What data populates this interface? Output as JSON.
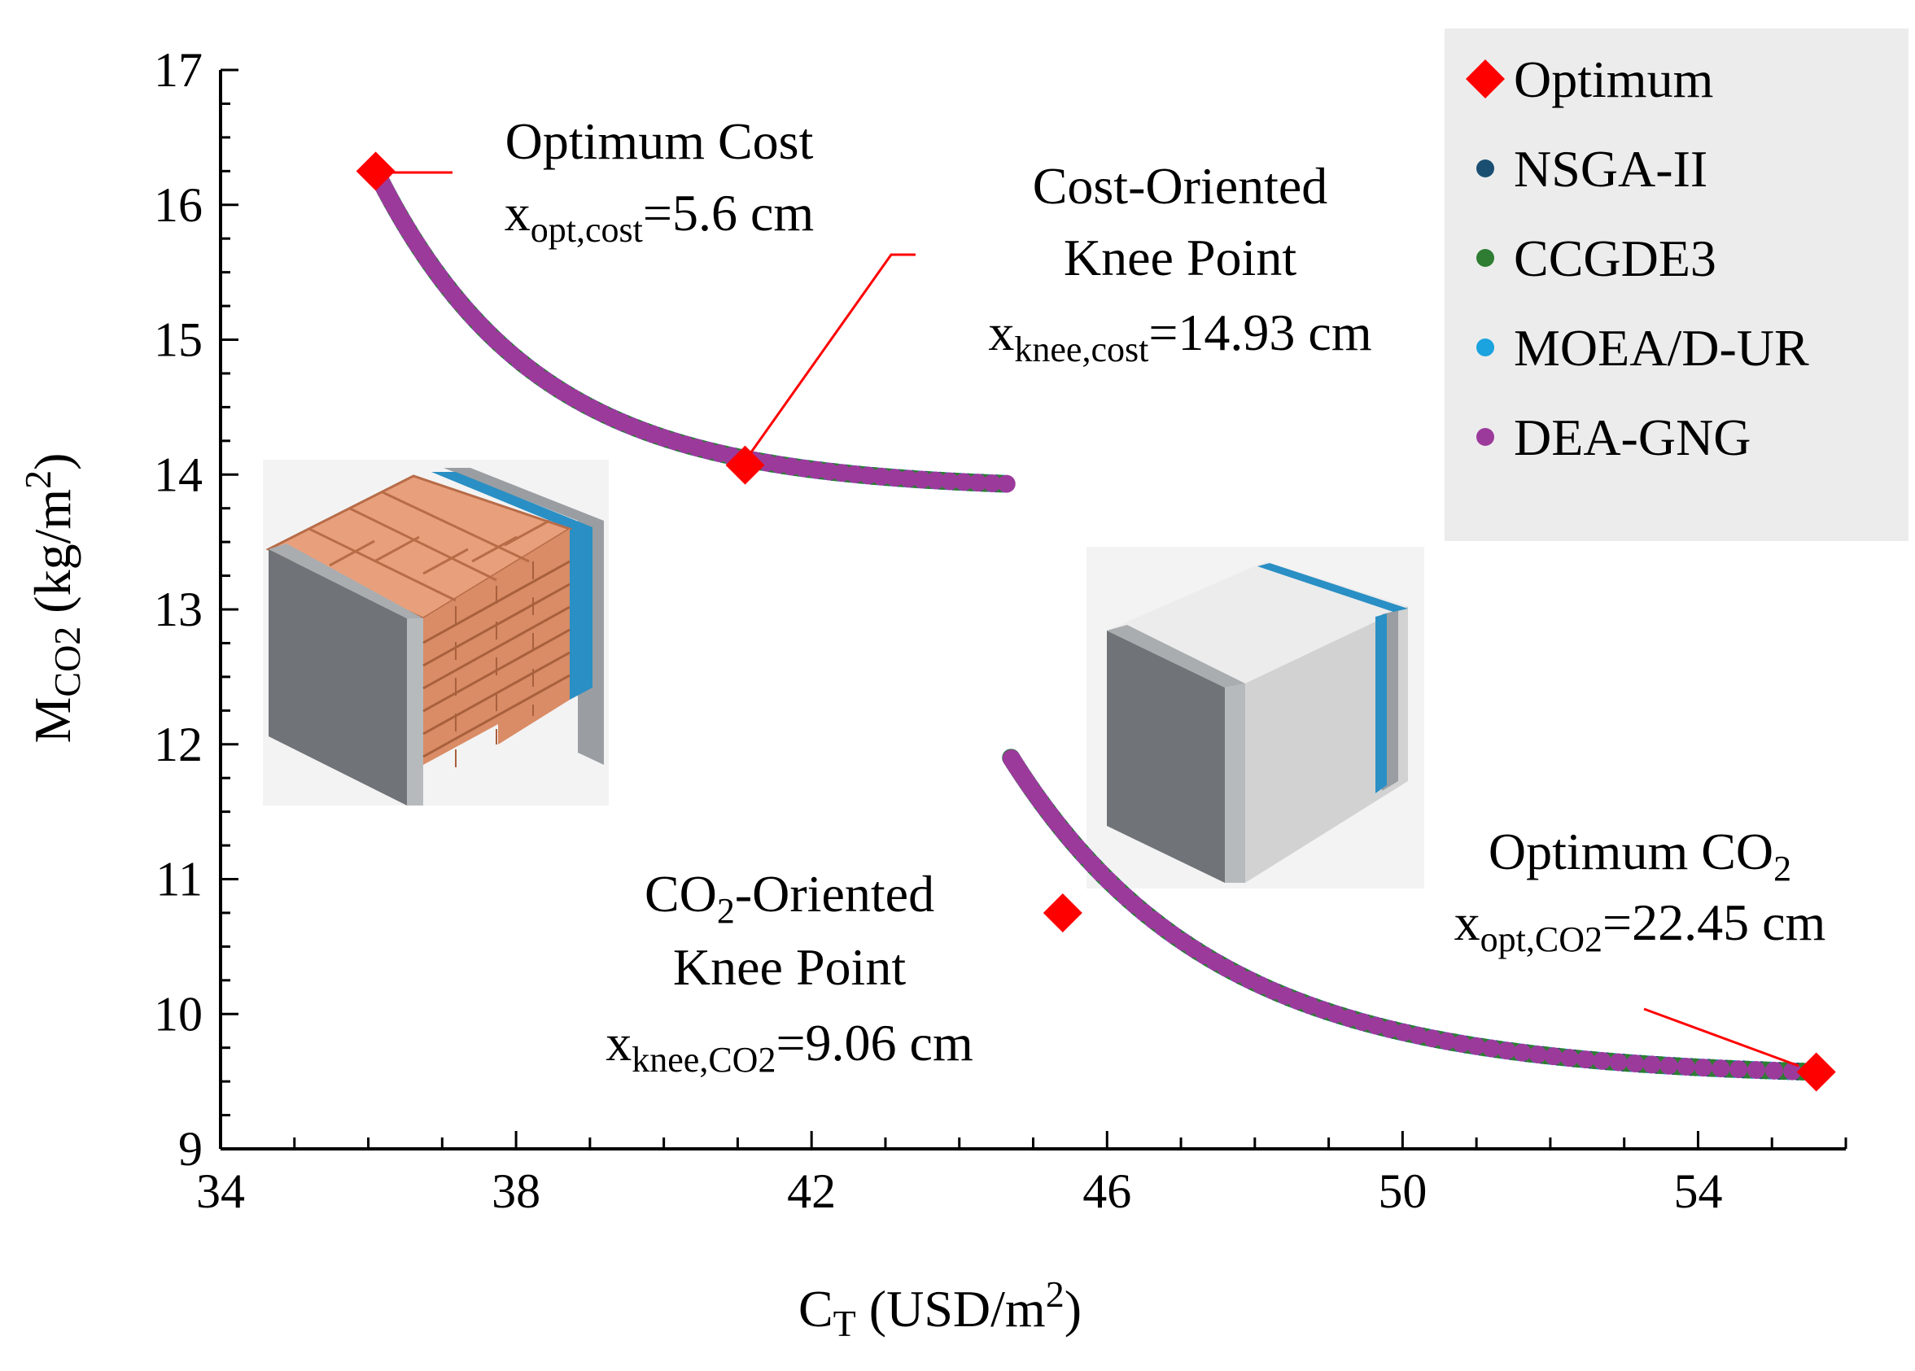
{
  "chart_data": {
    "type": "scatter",
    "xaxis": {
      "label_main": "C",
      "label_sub": "T",
      "label_rest": " (USD/m",
      "label_sup": "2",
      "label_close": ")",
      "range": [
        34,
        56
      ],
      "ticks": [
        34,
        38,
        42,
        46,
        50,
        54
      ],
      "tick_labels": [
        "34",
        "38",
        "42",
        "46",
        "50",
        "54"
      ]
    },
    "yaxis": {
      "label_main": "M",
      "label_sub": "CO2",
      "label_rest": " (kg/m",
      "label_sup": "2",
      "label_close": ")",
      "range": [
        9,
        17
      ],
      "ticks": [
        9,
        10,
        11,
        12,
        13,
        14,
        15,
        16,
        17
      ],
      "tick_labels": [
        "9",
        "10",
        "11",
        "12",
        "13",
        "14",
        "15",
        "16",
        "17"
      ]
    },
    "branches": [
      {
        "name": "brick-wall",
        "x_start": 36.1,
        "x_end": 44.7,
        "y_start": 16.25,
        "y_end": 13.93
      },
      {
        "name": "light-wall",
        "x_start": 44.7,
        "x_end": 55.6,
        "y_start": 11.9,
        "y_end": 9.57
      }
    ],
    "series": [
      {
        "name": "NSGA-II",
        "color": "#1b4f72",
        "marker": "circle"
      },
      {
        "name": "CCGDE3",
        "color": "#2e7d32",
        "marker": "circle"
      },
      {
        "name": "MOEA/D-UR",
        "color": "#1aa3df",
        "marker": "circle"
      },
      {
        "name": "DEA-GNG",
        "color": "#9c3a9c",
        "marker": "circle"
      }
    ],
    "optimum": {
      "name": "Optimum",
      "color": "#ff0000",
      "marker": "diamond",
      "points": [
        {
          "x": 36.1,
          "y": 16.25
        },
        {
          "x": 41.1,
          "y": 14.07
        },
        {
          "x": 45.4,
          "y": 10.75
        },
        {
          "x": 55.6,
          "y": 9.57
        }
      ]
    },
    "legend_position": "top-right",
    "annotations": {
      "opt_cost": {
        "title": "Optimum Cost",
        "var": "x",
        "sub": "opt,cost",
        "value": "=5.6 cm"
      },
      "knee_cost": {
        "line1": "Cost-Oriented",
        "line2": "Knee Point",
        "var": "x",
        "sub": "knee,cost",
        "value": "=14.93 cm"
      },
      "knee_co2": {
        "line1a": "CO",
        "line1sub": "2",
        "line1b": "-Oriented",
        "line2": "Knee Point",
        "var": "x",
        "sub": "knee,CO2",
        "value": "=9.06 cm"
      },
      "opt_co2": {
        "title_a": "Optimum CO",
        "title_sub": "2",
        "var": "x",
        "sub": "opt,CO2",
        "value": "=22.45 cm"
      }
    }
  },
  "colors": {
    "brick": "#e8a07c",
    "brick_dark": "#c97a55",
    "concrete_dark": "#707478",
    "concrete_light": "#b7babd",
    "insulation": "#2a8fc4",
    "panel_top": "#ececec",
    "panel_front": "#d2d2d2"
  }
}
